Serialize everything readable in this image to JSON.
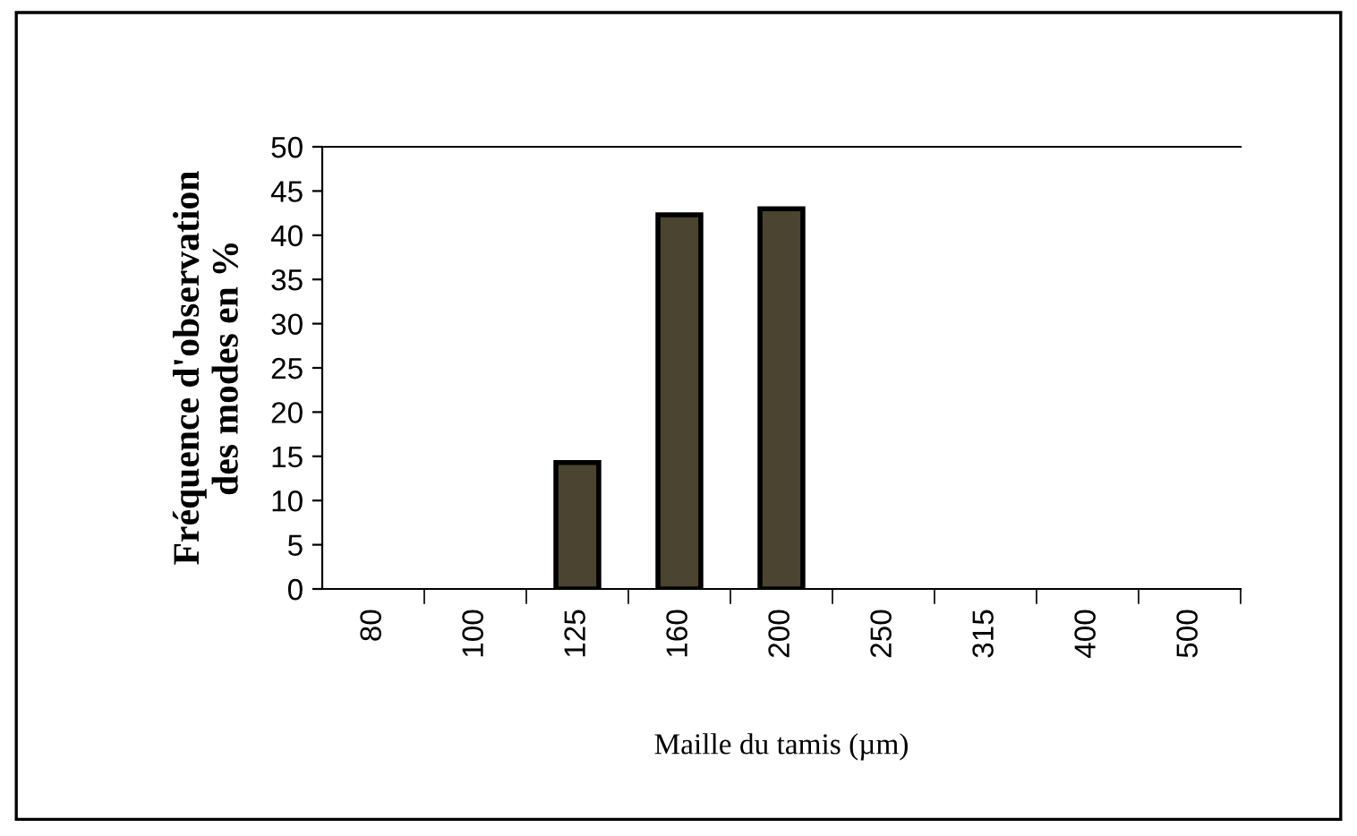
{
  "chart_data": {
    "type": "bar",
    "xlabel": "Maille du tamis (µm)",
    "ylabel": "Fréquence d'observation\ndes modes en %",
    "categories": [
      "80",
      "100",
      "125",
      "160",
      "200",
      "250",
      "315",
      "400",
      "500"
    ],
    "values": [
      0,
      0,
      14.3,
      42.3,
      43,
      0,
      0,
      0,
      0
    ],
    "color": "#4a4430",
    "ylim": [
      0,
      50
    ],
    "yticks": [
      0,
      5,
      10,
      15,
      20,
      25,
      30,
      35,
      40,
      45,
      50
    ],
    "grid": false
  }
}
